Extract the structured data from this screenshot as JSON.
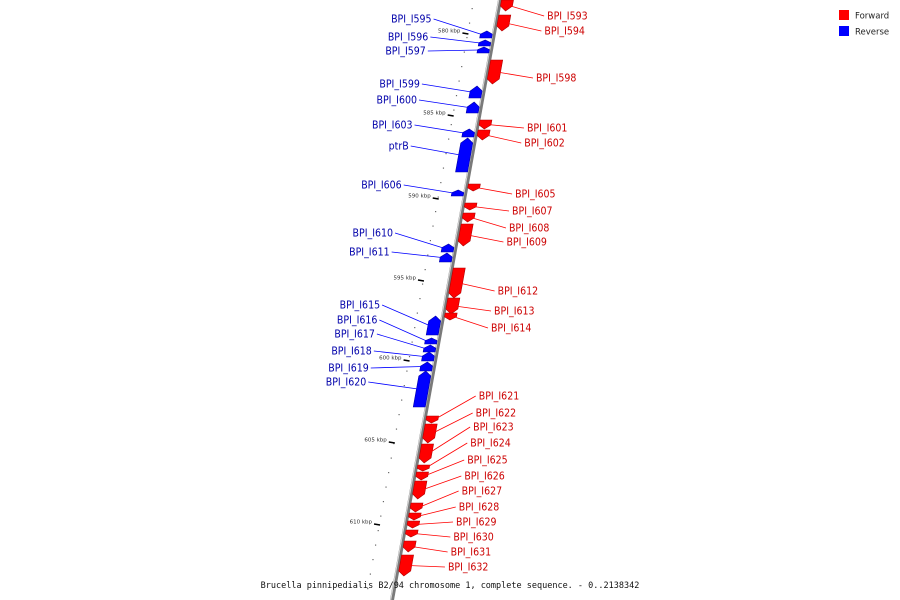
{
  "caption": "Brucella pinnipedialis B2/94 chromosome 1, complete sequence. - 0..2138342",
  "legend": [
    {
      "label": "Forward",
      "color": "#ff0000"
    },
    {
      "label": "Reverse",
      "color": "#0000ff"
    }
  ],
  "ticks": [
    "580 kbp",
    "585 kbp",
    "590 kbp",
    "595 kbp",
    "600 kbp",
    "605 kbp",
    "610 kbp"
  ],
  "forward_genes": [
    "BPI_I593",
    "BPI_I594",
    "BPI_I598",
    "BPI_I601",
    "BPI_I602",
    "BPI_I605",
    "BPI_I607",
    "BPI_I608",
    "BPI_I609",
    "BPI_I612",
    "BPI_I613",
    "BPI_I614",
    "BPI_I621",
    "BPI_I622",
    "BPI_I623",
    "BPI_I624",
    "BPI_I625",
    "BPI_I626",
    "BPI_I627",
    "BPI_I628",
    "BPI_I629",
    "BPI_I630",
    "BPI_I631",
    "BPI_I632"
  ],
  "reverse_genes": [
    "BPI_I595",
    "BPI_I596",
    "BPI_I597",
    "BPI_I599",
    "BPI_I600",
    "BPI_I603",
    "ptrB",
    "BPI_I606",
    "BPI_I610",
    "BPI_I611",
    "BPI_I615",
    "BPI_I616",
    "BPI_I617",
    "BPI_I618",
    "BPI_I619",
    "BPI_I620"
  ]
}
